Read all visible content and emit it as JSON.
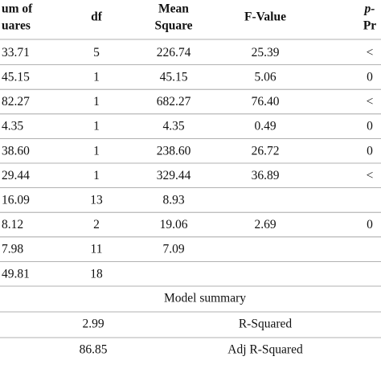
{
  "table": {
    "header": [
      [
        "um of",
        "uares"
      ],
      [
        "df"
      ],
      [
        "Mean",
        "Square"
      ],
      [
        "F-Value"
      ],
      [
        "p-",
        "Pr"
      ]
    ],
    "rows": [
      [
        "33.71",
        "5",
        "226.74",
        "25.39",
        "<"
      ],
      [
        "45.15",
        "1",
        "45.15",
        "5.06",
        "0"
      ],
      [
        "82.27",
        "1",
        "682.27",
        "76.40",
        "<"
      ],
      [
        "4.35",
        "1",
        "4.35",
        "0.49",
        "0"
      ],
      [
        "38.60",
        "1",
        "238.60",
        "26.72",
        "0"
      ],
      [
        "29.44",
        "1",
        "329.44",
        "36.89",
        "<"
      ],
      [
        "16.09",
        "13",
        "8.93"
      ],
      [
        "8.12",
        "2",
        "19.06",
        "2.69",
        "0"
      ],
      [
        "7.98",
        "11",
        "7.09"
      ],
      [
        "49.81",
        "18"
      ]
    ],
    "summary_title": "Model summary",
    "summary_rows": [
      [
        "2.99",
        "R-Squared"
      ],
      [
        "86.85",
        "Adj R-Squared"
      ]
    ]
  }
}
